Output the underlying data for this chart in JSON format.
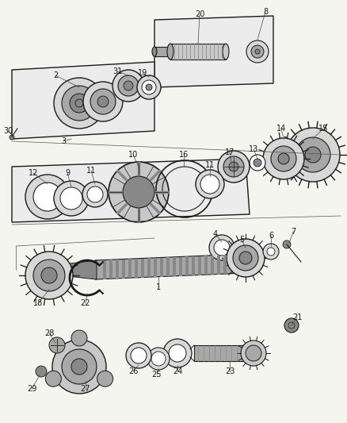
{
  "bg_color": "#f5f5f0",
  "lc": "#1a1a1a",
  "gray1": "#c8c8c8",
  "gray2": "#a8a8a8",
  "gray3": "#888888",
  "gray4": "#d8d8d8",
  "white": "#ffffff",
  "figw": 4.38,
  "figh": 5.33,
  "dpi": 100
}
